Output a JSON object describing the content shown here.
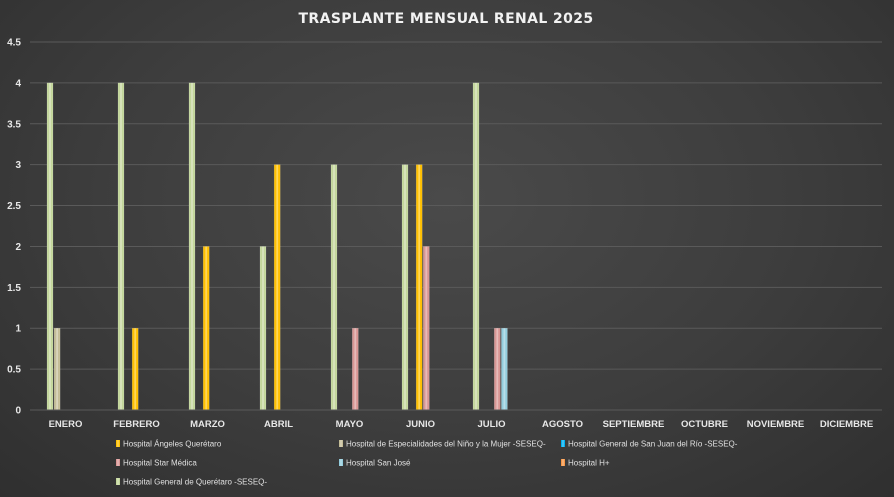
{
  "chart_data": {
    "type": "bar",
    "title": "TRASPLANTE MENSUAL RENAL 2025",
    "xlabel": "",
    "ylabel": "",
    "ylim": [
      0,
      4.5
    ],
    "yticks": [
      "0",
      "0.5",
      "1",
      "1.5",
      "2",
      "2.5",
      "3",
      "3.5",
      "4",
      "4.5"
    ],
    "categories": [
      "ENERO",
      "FEBRERO",
      "MARZO",
      "ABRIL",
      "MAYO",
      "JUNIO",
      "JULIO",
      "AGOSTO",
      "SEPTIEMBRE",
      "OCTUBRE",
      "NOVIEMBRE",
      "DICIEMBRE"
    ],
    "grid": true,
    "legend_position": "bottom",
    "series": [
      {
        "name": "Hospital General de Querétaro -SESEQ-",
        "color": "#c3d69b",
        "values": [
          4,
          4,
          4,
          2,
          3,
          3,
          4,
          null,
          null,
          null,
          null,
          null
        ]
      },
      {
        "name": "Hospital de Especialidades del Niño y la Mujer -SESEQ-",
        "color": "#c4bd97",
        "values": [
          1,
          null,
          null,
          null,
          null,
          null,
          null,
          null,
          null,
          null,
          null,
          null
        ]
      },
      {
        "name": "Hospital Ángeles Querétaro",
        "color": "#ffc000",
        "values": [
          null,
          1,
          2,
          3,
          null,
          3,
          null,
          null,
          null,
          null,
          null,
          null
        ]
      },
      {
        "name": "Hospital Star Médica",
        "color": "#d99694",
        "values": [
          null,
          null,
          null,
          null,
          1,
          2,
          1,
          null,
          null,
          null,
          null,
          null
        ]
      },
      {
        "name": "Hospital San José",
        "color": "#93cddd",
        "values": [
          null,
          null,
          null,
          null,
          null,
          null,
          1,
          null,
          null,
          null,
          null,
          null
        ]
      },
      {
        "name": "Hospital General de San Juan del Río -SESEQ-",
        "color": "#00b0f0",
        "values": [
          null,
          null,
          null,
          null,
          null,
          null,
          null,
          null,
          null,
          null,
          null,
          null
        ]
      },
      {
        "name": "Hospital H+",
        "color": "#f79646",
        "values": [
          null,
          null,
          null,
          null,
          null,
          null,
          null,
          null,
          null,
          null,
          null,
          null
        ]
      }
    ],
    "legend": [
      {
        "name": "Hospital Ángeles Querétaro",
        "color": "#ffc000"
      },
      {
        "name": "Hospital de Especialidades del Niño y la Mujer -SESEQ-",
        "color": "#c4bd97"
      },
      {
        "name": "Hospital General de San Juan del Río -SESEQ-",
        "color": "#00b0f0"
      },
      {
        "name": "Hospital Star Médica",
        "color": "#d99694"
      },
      {
        "name": "Hospital San José",
        "color": "#93cddd"
      },
      {
        "name": "Hospital H+",
        "color": "#f79646"
      },
      {
        "name": "Hospital General de Querétaro -SESEQ-",
        "color": "#c3d69b"
      }
    ]
  }
}
